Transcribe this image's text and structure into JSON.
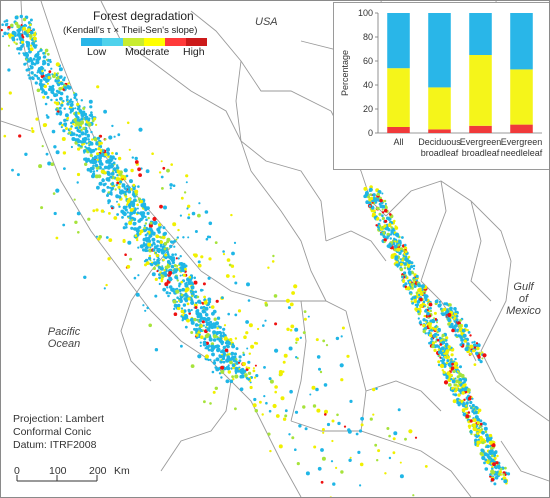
{
  "map": {
    "regions": {
      "usa": "USA",
      "pacific": [
        "Pacific",
        "Ocean"
      ],
      "gulf": [
        "Gulf",
        "of",
        "Mexico"
      ]
    },
    "legend": {
      "title": "Forest degradation",
      "subtitle": "(Kendall's τ × Theil-Sen's slope)",
      "low_label": "Low",
      "moderate_label": "Moderate",
      "high_label": "High",
      "colors": [
        "#29b6e8",
        "#4fd2ec",
        "#c8ec30",
        "#ffff00",
        "#ff3a3a",
        "#cc1a1a"
      ]
    },
    "projection": {
      "line1": "Projection: Lambert",
      "line2": "Conformal Conic",
      "line3": "Datum: ITRF2008"
    },
    "scale": {
      "ticks": [
        "0",
        "100",
        "200"
      ],
      "unit": "Km"
    },
    "point_colors": {
      "low": "#1fb6e6",
      "moderate": "#f0f000",
      "mid": "#a6e33b",
      "high": "#ee1111"
    }
  },
  "chart_data": {
    "type": "bar",
    "stacked": true,
    "categories": [
      [
        "All"
      ],
      [
        "Deciduous",
        "broadleaf"
      ],
      [
        "Evergreen",
        "broadleaf"
      ],
      [
        "Evergreen",
        "needleleaf"
      ]
    ],
    "ylabel": "Percentage",
    "ylim": [
      0,
      100
    ],
    "yticks": [
      0,
      20,
      40,
      60,
      80,
      100
    ],
    "series": [
      {
        "color": "#f03a3a",
        "values": [
          5,
          3,
          6,
          7
        ]
      },
      {
        "color": "#f5f51a",
        "values": [
          49,
          35,
          59,
          46
        ]
      },
      {
        "color": "#29b6e8",
        "values": [
          46,
          62,
          35,
          47
        ]
      }
    ]
  }
}
